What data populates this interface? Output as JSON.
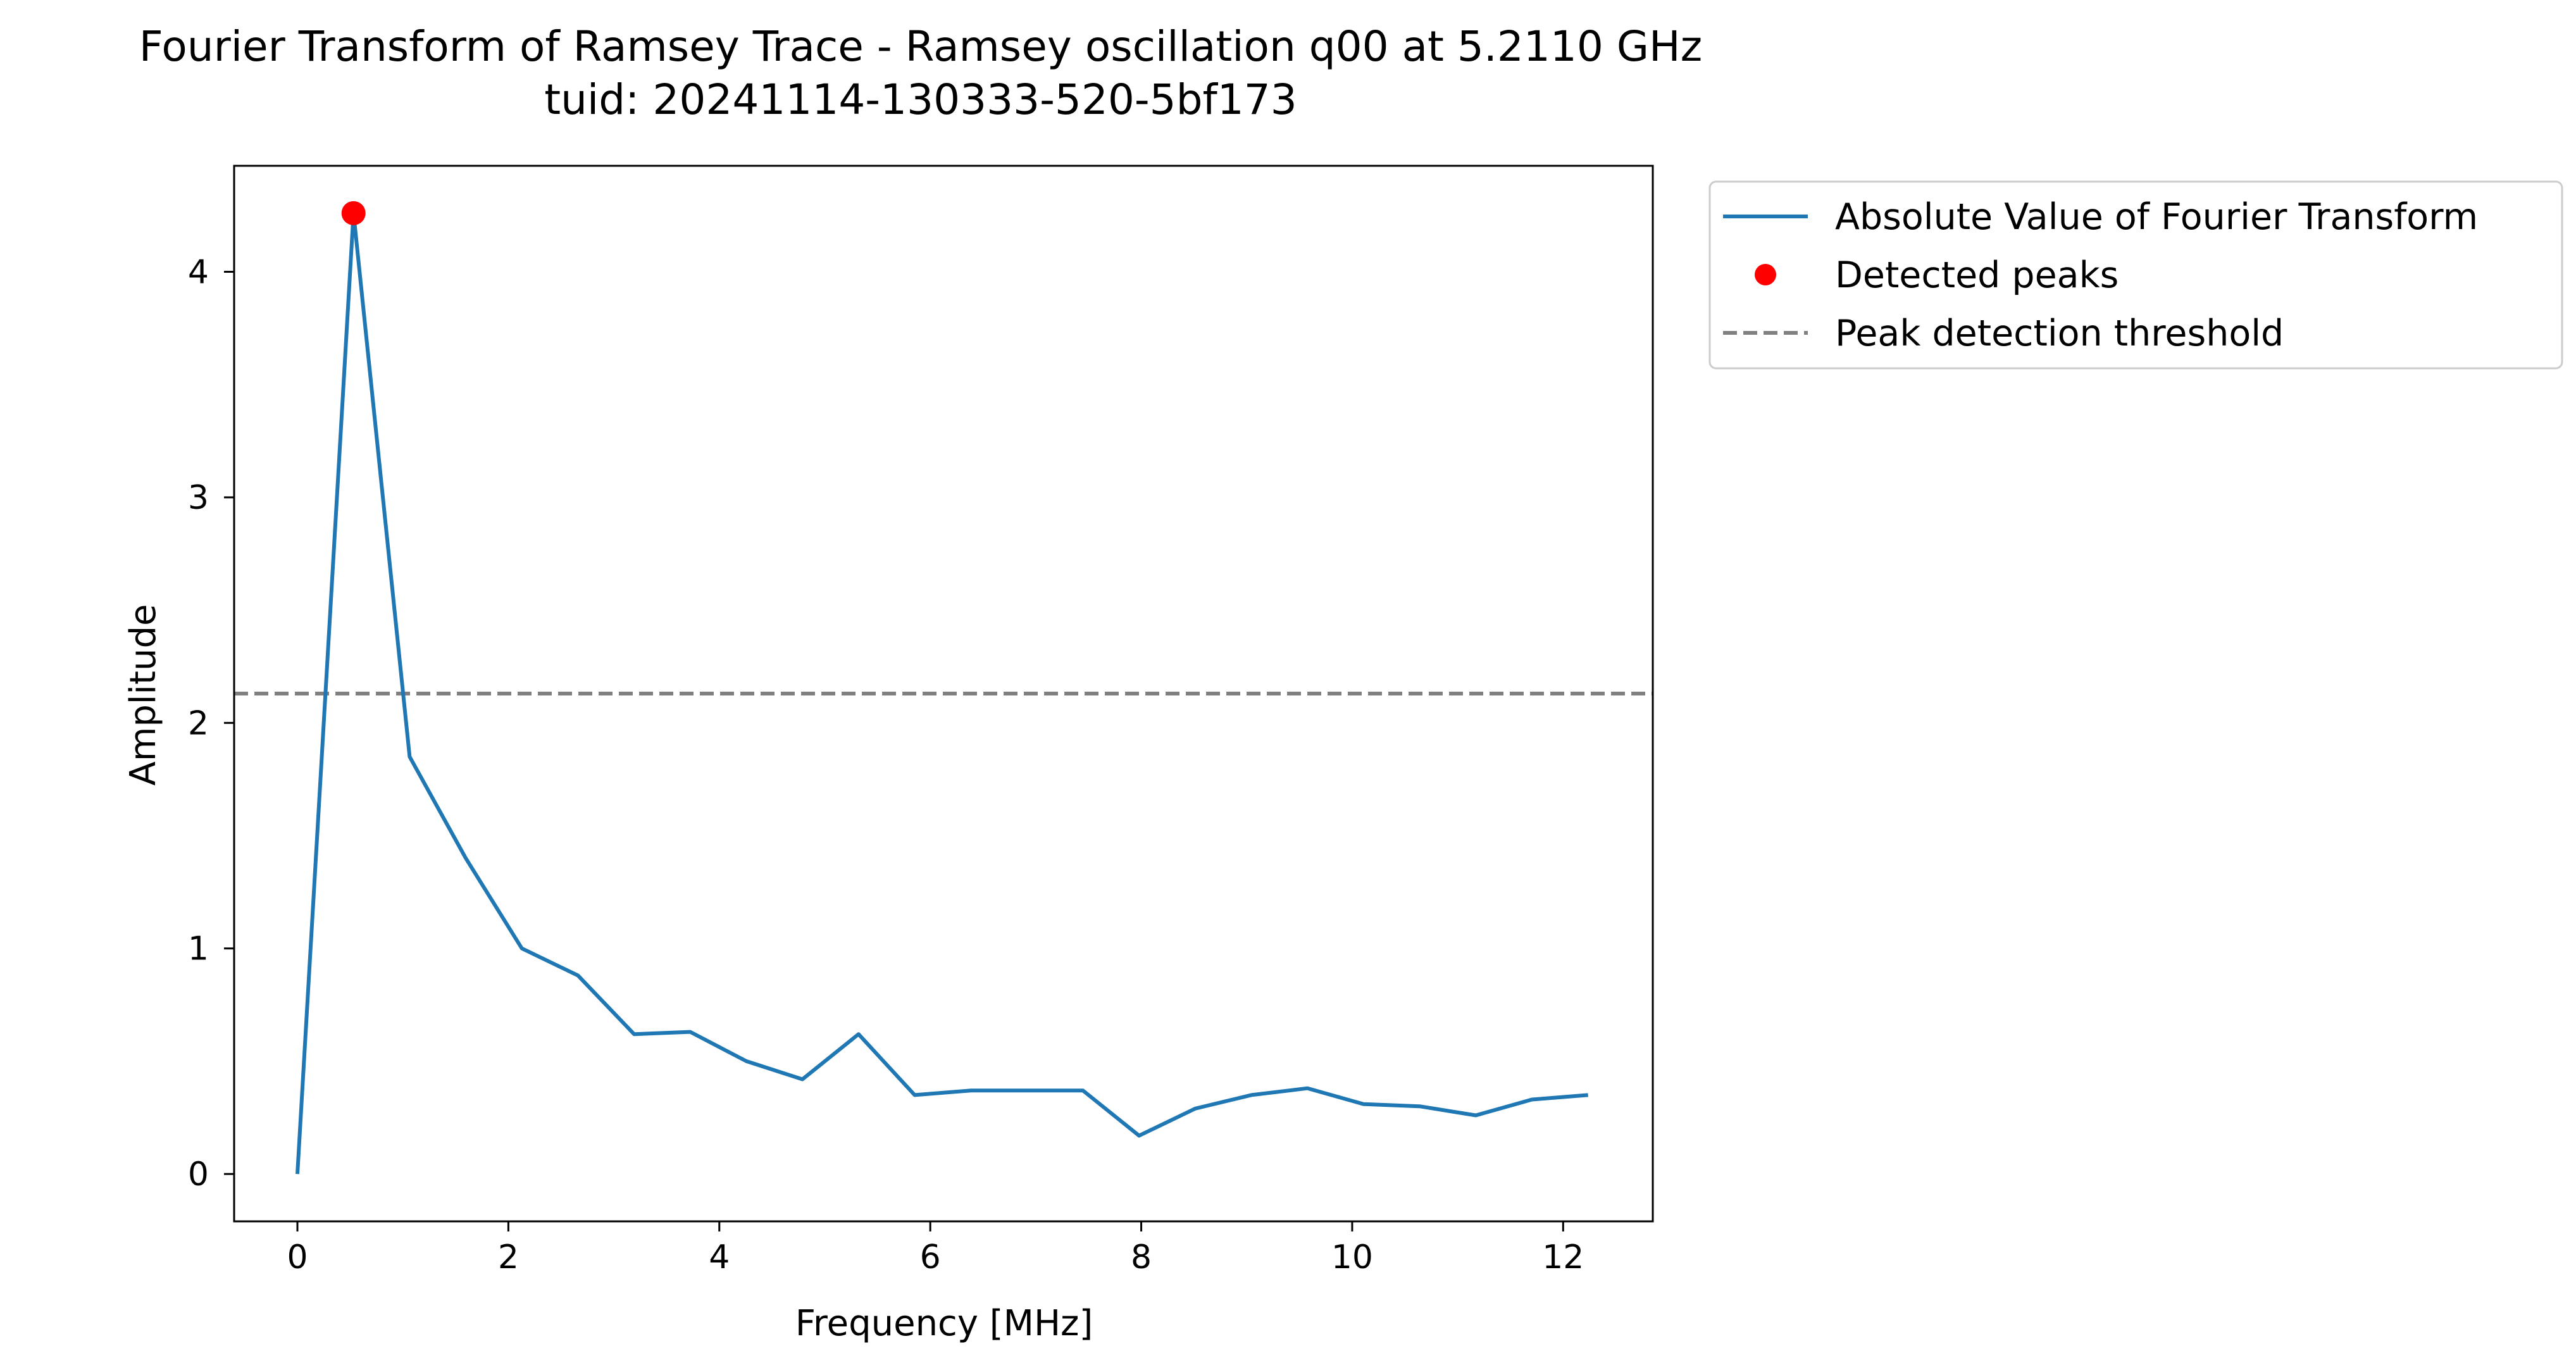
{
  "chart_data": {
    "type": "line",
    "title": "Fourier Transform of Ramsey Trace - Ramsey oscillation q00 at 5.2110 GHz",
    "subtitle": "tuid: 20241114-130333-520-5bf173",
    "xlabel": "Frequency [MHz]",
    "ylabel": "Amplitude",
    "xlim": [
      -0.6,
      12.85
    ],
    "ylim": [
      -0.21,
      4.47
    ],
    "xticks": [
      0,
      2,
      4,
      6,
      8,
      10,
      12
    ],
    "yticks": [
      0,
      1,
      2,
      3,
      4
    ],
    "grid": false,
    "legend_position": "outside-top-right",
    "series": [
      {
        "name": "Absolute Value of Fourier Transform",
        "kind": "line",
        "color": "#1f77b4",
        "x": [
          0,
          0.532,
          1.064,
          1.596,
          2.128,
          2.66,
          3.192,
          3.724,
          4.256,
          4.788,
          5.32,
          5.852,
          6.384,
          6.916,
          7.448,
          7.98,
          8.512,
          9.044,
          9.576,
          10.108,
          10.64,
          11.172,
          11.704,
          12.236
        ],
        "values": [
          0.0,
          4.26,
          1.85,
          1.4,
          1.0,
          0.88,
          0.62,
          0.63,
          0.5,
          0.42,
          0.62,
          0.35,
          0.37,
          0.37,
          0.37,
          0.17,
          0.29,
          0.35,
          0.38,
          0.31,
          0.3,
          0.26,
          0.33,
          0.35
        ]
      },
      {
        "name": "Detected peaks",
        "kind": "points",
        "color": "#ff0000",
        "x": [
          0.532
        ],
        "values": [
          4.26
        ]
      },
      {
        "name": "Peak detection threshold",
        "kind": "hline",
        "color": "#808080",
        "value": 2.13
      }
    ]
  }
}
